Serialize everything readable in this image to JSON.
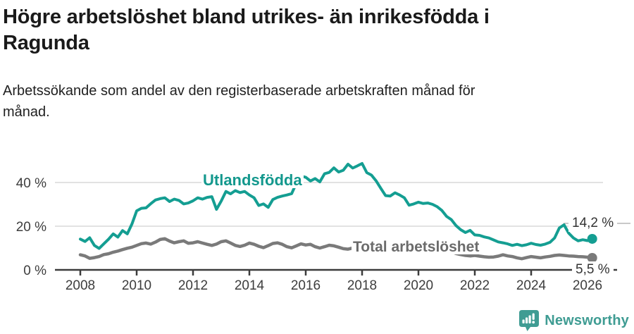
{
  "header": {
    "title_lines": [
      "Högre arbetslöshet bland utrikes- än inrikesfödda i",
      "Ragunda"
    ],
    "subtitle_lines": [
      "Arbetssökande som andel av den registerbaserade arbetskraften månad för",
      "månad."
    ]
  },
  "chart_data": {
    "type": "line",
    "title": "Högre arbetslöshet bland utrikes- än inrikesfödda i Ragunda",
    "subtitle": "Arbetssökande som andel av den registerbaserade arbetskraften månad för månad.",
    "grid": "horizontal",
    "legend_position": "inline-labels",
    "x_range": [
      2007.1,
      2027.0
    ],
    "y_range": [
      0,
      50
    ],
    "x_axis": {
      "ticks": [
        {
          "value": 2008,
          "label": "2008"
        },
        {
          "value": 2010,
          "label": "2010"
        },
        {
          "value": 2012,
          "label": "2012"
        },
        {
          "value": 2014,
          "label": "2014"
        },
        {
          "value": 2016,
          "label": "2016"
        },
        {
          "value": 2018,
          "label": "2018"
        },
        {
          "value": 2020,
          "label": "2020"
        },
        {
          "value": 2022,
          "label": "2022"
        },
        {
          "value": 2024,
          "label": "2024"
        },
        {
          "value": 2026,
          "label": "2026"
        }
      ]
    },
    "y_axis": {
      "unit": "%",
      "ticks": [
        {
          "value": 0,
          "label": "0 %"
        },
        {
          "value": 20,
          "label": "20 %"
        },
        {
          "value": 40,
          "label": "40 %"
        }
      ]
    },
    "series": [
      {
        "name": "Utlandsfödda",
        "color": "#149e92",
        "label_color": "#13988d",
        "end_label": "14,2 %",
        "end_value": 14.2,
        "start_year": 2008.0,
        "step_years": 0.16667,
        "values": [
          14.1,
          13.0,
          14.7,
          11.2,
          9.8,
          11.9,
          14.0,
          16.5,
          15.0,
          18.0,
          16.5,
          21.0,
          27.0,
          28.2,
          28.4,
          30.3,
          32.0,
          32.6,
          33.0,
          31.3,
          32.4,
          31.8,
          30.2,
          30.6,
          31.6,
          33.0,
          32.4,
          33.2,
          33.5,
          27.7,
          31.5,
          35.9,
          34.8,
          36.3,
          35.4,
          35.9,
          34.3,
          33.0,
          29.5,
          30.2,
          28.6,
          32.2,
          33.2,
          33.8,
          34.3,
          34.9,
          39.7,
          42.9,
          42.4,
          40.7,
          41.8,
          40.3,
          44.0,
          44.6,
          46.7,
          44.8,
          45.6,
          48.4,
          46.6,
          47.6,
          48.7,
          44.5,
          43.4,
          40.7,
          37.3,
          34.0,
          33.8,
          35.3,
          34.3,
          33.0,
          29.6,
          30.2,
          31.0,
          30.4,
          30.6,
          30.0,
          28.9,
          27.2,
          24.5,
          23.0,
          20.3,
          18.4,
          17.1,
          18.1,
          16.0,
          15.8,
          15.1,
          14.6,
          13.7,
          12.8,
          12.4,
          11.9,
          11.2,
          11.7,
          11.1,
          11.5,
          12.2,
          11.6,
          11.3,
          11.8,
          12.6,
          14.6,
          19.2,
          20.6,
          16.8,
          14.6,
          13.3,
          13.8,
          13.4,
          14.2
        ]
      },
      {
        "name": "Total arbetslöshet",
        "color": "#7a7a7a",
        "label_color": "#6b6b6b",
        "end_label": "5,5 %",
        "end_value": 5.5,
        "start_year": 2008.0,
        "step_years": 0.16667,
        "values": [
          6.9,
          6.4,
          5.3,
          5.6,
          6.1,
          7.0,
          7.4,
          8.1,
          8.6,
          9.3,
          9.9,
          10.4,
          11.2,
          12.0,
          12.3,
          11.8,
          12.7,
          13.9,
          14.3,
          13.2,
          12.4,
          12.9,
          13.3,
          12.2,
          12.4,
          12.9,
          12.3,
          11.7,
          11.2,
          11.8,
          12.9,
          13.3,
          12.3,
          11.2,
          10.7,
          11.3,
          12.3,
          11.7,
          10.8,
          10.2,
          11.1,
          12.1,
          12.4,
          11.7,
          10.6,
          10.1,
          11.0,
          11.9,
          11.4,
          11.7,
          10.6,
          10.0,
          10.6,
          11.3,
          11.0,
          10.4,
          9.7,
          9.5,
          10.0,
          10.6,
          10.2,
          9.8,
          9.2,
          9.0,
          9.4,
          9.9,
          9.6,
          9.2,
          8.8,
          8.7,
          9.1,
          9.6,
          10.0,
          10.6,
          10.9,
          10.4,
          10.0,
          9.4,
          9.0,
          8.3,
          7.5,
          7.0,
          6.6,
          6.4,
          6.6,
          6.3,
          6.0,
          5.8,
          5.9,
          6.3,
          6.9,
          6.4,
          6.1,
          5.5,
          5.1,
          5.6,
          6.1,
          5.8,
          5.5,
          5.9,
          6.2,
          6.6,
          6.8,
          6.6,
          6.4,
          6.3,
          6.1,
          6.0,
          5.8,
          5.5
        ]
      }
    ]
  },
  "footer": {
    "brand": "Newsworthy"
  }
}
